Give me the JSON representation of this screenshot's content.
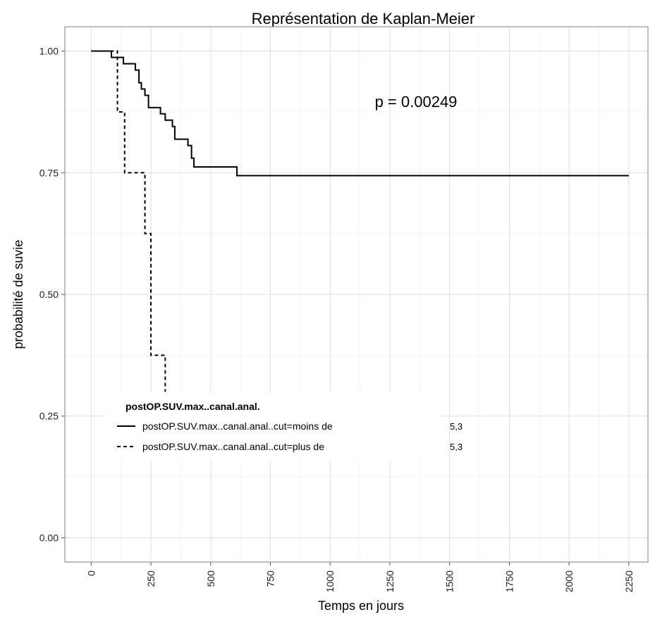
{
  "chart_data": {
    "type": "line",
    "title": "Représentation de Kaplan-Meier",
    "xlabel": "Temps en jours",
    "ylabel": "probabilité de suvie",
    "xlim": [
      -110,
      2330
    ],
    "ylim": [
      -0.05,
      1.05
    ],
    "x_ticks": [
      "0",
      "250",
      "500",
      "750",
      "1000",
      "1250",
      "1500",
      "1750",
      "2000",
      "2250"
    ],
    "y_ticks": [
      "0.00",
      "0.25",
      "0.50",
      "0.75",
      "1.00"
    ],
    "grid": true,
    "annotation": "p = 0.00249",
    "legend": {
      "title": "postOP.SUV.max..canal.anal.",
      "placement": "bottom-left"
    },
    "series": [
      {
        "name": "postOP.SUV.max..canal.anal..cut=moins de",
        "suffix": "5,3",
        "linestyle": "solid",
        "x": [
          0,
          85,
          135,
          185,
          200,
          210,
          225,
          240,
          290,
          310,
          340,
          350,
          405,
          420,
          430,
          610,
          2250
        ],
        "y": [
          1.0,
          0.987,
          0.974,
          0.961,
          0.935,
          0.922,
          0.909,
          0.884,
          0.871,
          0.858,
          0.845,
          0.819,
          0.806,
          0.78,
          0.762,
          0.744,
          0.744
        ]
      },
      {
        "name": "postOP.SUV.max..canal.anal..cut=plus de",
        "suffix": "5,3",
        "linestyle": "dashed",
        "x": [
          0,
          110,
          140,
          225,
          250,
          310
        ],
        "y": [
          1.0,
          0.875,
          0.75,
          0.625,
          0.375,
          0.3
        ]
      }
    ]
  }
}
